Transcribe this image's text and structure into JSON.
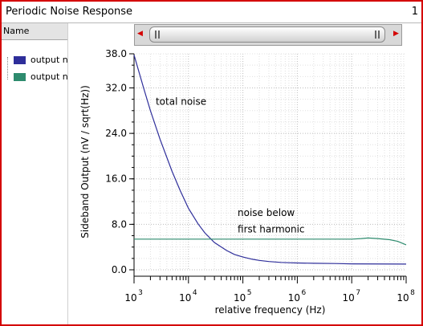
{
  "window": {
    "title": "Periodic Noise Response",
    "page_number": "1"
  },
  "legend": {
    "header": "Name",
    "items": [
      {
        "label": "output n",
        "color": "#2e2e9a"
      },
      {
        "label": "output n",
        "color": "#2e8b6e"
      }
    ]
  },
  "chart_data": {
    "type": "line",
    "xscale": "log",
    "xlim": [
      1000,
      100000000
    ],
    "ylim": [
      0,
      38
    ],
    "x_ticks": [
      1000,
      10000,
      100000,
      1000000,
      10000000,
      100000000
    ],
    "x_tick_labels": [
      {
        "base": "10",
        "exp": "3"
      },
      {
        "base": "10",
        "exp": "4"
      },
      {
        "base": "10",
        "exp": "5"
      },
      {
        "base": "10",
        "exp": "6"
      },
      {
        "base": "10",
        "exp": "7"
      },
      {
        "base": "10",
        "exp": "8"
      }
    ],
    "y_ticks": [
      0,
      8,
      16,
      24,
      32,
      38
    ],
    "y_tick_labels": [
      "0.0",
      "8.0",
      "16.0",
      "24.0",
      "32.0",
      "38.0"
    ],
    "xlabel": "relative frequency (Hz)",
    "ylabel": "Sideband Output (nV / sqrt(Hz))",
    "grid": true,
    "series": [
      {
        "color": "#2e2e9a",
        "x": [
          1000,
          1500,
          2000,
          3000,
          5000,
          7000,
          10000,
          15000,
          20000,
          30000,
          50000,
          70000,
          100000,
          150000,
          200000,
          300000,
          500000,
          700000,
          1000000,
          2000000,
          5000000,
          10000000,
          100000000
        ],
        "y": [
          37.8,
          32.0,
          28.0,
          23.0,
          17.3,
          14.0,
          10.8,
          8.1,
          6.5,
          4.8,
          3.4,
          2.7,
          2.25,
          1.85,
          1.65,
          1.45,
          1.3,
          1.25,
          1.2,
          1.15,
          1.1,
          1.05,
          1.0
        ]
      },
      {
        "color": "#2e8b6e",
        "x": [
          1000,
          10000,
          100000,
          1000000,
          10000000,
          15000000,
          20000000,
          30000000,
          50000000,
          70000000,
          100000000
        ],
        "y": [
          5.4,
          5.4,
          5.4,
          5.4,
          5.4,
          5.5,
          5.6,
          5.5,
          5.3,
          5.0,
          4.4
        ]
      }
    ],
    "annotations": [
      {
        "text": "total noise",
        "x": 2500,
        "y": 29
      },
      {
        "text": "noise below",
        "x": 80000,
        "y": 9.5
      },
      {
        "text": "first harmonic",
        "x": 80000,
        "y": 6.6
      }
    ]
  }
}
